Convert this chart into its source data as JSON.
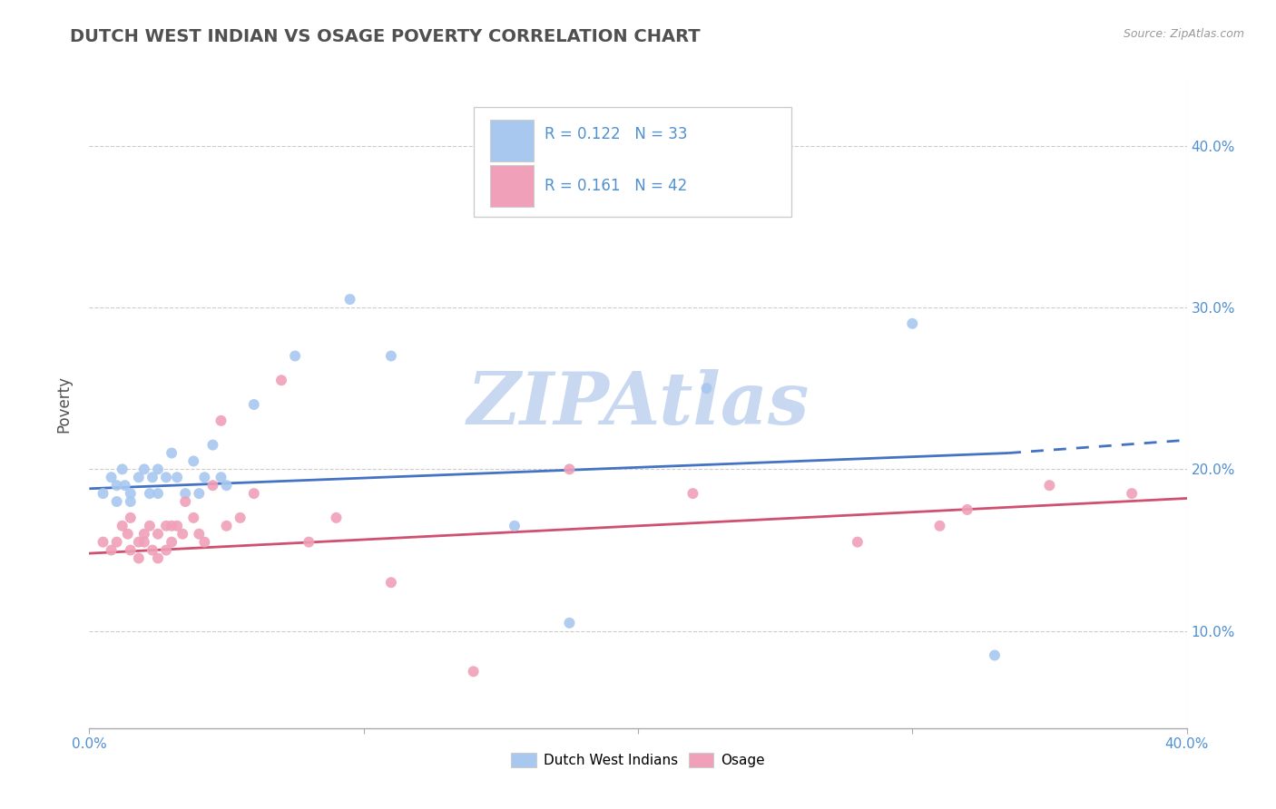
{
  "title": "DUTCH WEST INDIAN VS OSAGE POVERTY CORRELATION CHART",
  "source_text": "Source: ZipAtlas.com",
  "ylabel": "Poverty",
  "xlim": [
    0.0,
    0.4
  ],
  "ylim": [
    0.04,
    0.44
  ],
  "watermark": "ZIPAtlas",
  "legend_r1": "R = 0.122",
  "legend_n1": "N = 33",
  "legend_r2": "R = 0.161",
  "legend_n2": "N = 42",
  "blue_scatter_x": [
    0.005,
    0.008,
    0.01,
    0.01,
    0.012,
    0.013,
    0.015,
    0.015,
    0.018,
    0.02,
    0.022,
    0.023,
    0.025,
    0.025,
    0.028,
    0.03,
    0.032,
    0.035,
    0.038,
    0.04,
    0.042,
    0.045,
    0.048,
    0.05,
    0.06,
    0.075,
    0.095,
    0.11,
    0.155,
    0.175,
    0.225,
    0.3,
    0.33
  ],
  "blue_scatter_y": [
    0.185,
    0.195,
    0.19,
    0.18,
    0.2,
    0.19,
    0.185,
    0.18,
    0.195,
    0.2,
    0.185,
    0.195,
    0.2,
    0.185,
    0.195,
    0.21,
    0.195,
    0.185,
    0.205,
    0.185,
    0.195,
    0.215,
    0.195,
    0.19,
    0.24,
    0.27,
    0.305,
    0.27,
    0.165,
    0.105,
    0.25,
    0.29,
    0.085
  ],
  "pink_scatter_x": [
    0.005,
    0.008,
    0.01,
    0.012,
    0.014,
    0.015,
    0.015,
    0.018,
    0.018,
    0.02,
    0.02,
    0.022,
    0.023,
    0.025,
    0.025,
    0.028,
    0.028,
    0.03,
    0.03,
    0.032,
    0.034,
    0.035,
    0.038,
    0.04,
    0.042,
    0.045,
    0.048,
    0.05,
    0.055,
    0.06,
    0.07,
    0.08,
    0.09,
    0.11,
    0.14,
    0.175,
    0.22,
    0.28,
    0.31,
    0.32,
    0.35,
    0.38
  ],
  "pink_scatter_y": [
    0.155,
    0.15,
    0.155,
    0.165,
    0.16,
    0.17,
    0.15,
    0.155,
    0.145,
    0.155,
    0.16,
    0.165,
    0.15,
    0.16,
    0.145,
    0.165,
    0.15,
    0.155,
    0.165,
    0.165,
    0.16,
    0.18,
    0.17,
    0.16,
    0.155,
    0.19,
    0.23,
    0.165,
    0.17,
    0.185,
    0.255,
    0.155,
    0.17,
    0.13,
    0.075,
    0.2,
    0.185,
    0.155,
    0.165,
    0.175,
    0.19,
    0.185
  ],
  "blue_line_x0": 0.0,
  "blue_line_x1": 0.335,
  "blue_line_x_dash_start": 0.335,
  "blue_line_x_dash_end": 0.4,
  "blue_line_y0": 0.188,
  "blue_line_y1": 0.21,
  "blue_line_y_dash_end": 0.218,
  "pink_line_x0": 0.0,
  "pink_line_x1": 0.4,
  "pink_line_y0": 0.148,
  "pink_line_y1": 0.182,
  "blue_color": "#A8C8F0",
  "pink_color": "#F0A0B8",
  "blue_line_color": "#4472C4",
  "pink_line_color": "#D05070",
  "watermark_color": "#C8D8F0",
  "grid_color": "#CCCCCC",
  "background_color": "#FFFFFF",
  "title_color": "#505050",
  "tick_color": "#5090D0",
  "legend_box_color": "#E8EEF5",
  "legend_border_color": "#CCCCCC"
}
